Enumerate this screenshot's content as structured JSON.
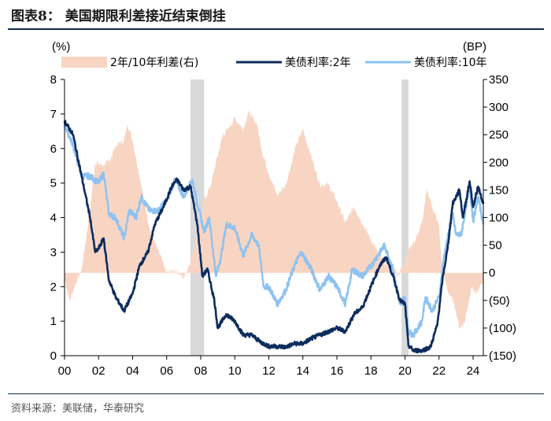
{
  "title": "图表8：  美国期限利差接近结束倒挂",
  "source": "资料来源：美联储，华泰研究",
  "chart_data": {
    "type": "line",
    "title": "美国期限利差接近结束倒挂",
    "left_axis": {
      "unit": "(%)",
      "min": 0,
      "max": 8,
      "ticks": [
        "0",
        "1",
        "2",
        "3",
        "4",
        "5",
        "6",
        "7",
        "8"
      ]
    },
    "right_axis": {
      "unit": "(BP)",
      "min": -150,
      "max": 350,
      "ticks": [
        "(150)",
        "(100)",
        "(50)",
        "0",
        "50",
        "100",
        "150",
        "200",
        "250",
        "300",
        "350"
      ]
    },
    "x_axis": {
      "min": 2000,
      "max": 2024.6,
      "tick_values": [
        2000,
        2002,
        2004,
        2006,
        2008,
        2010,
        2012,
        2014,
        2016,
        2018,
        2020,
        2022,
        2024
      ],
      "tick_labels": [
        "00",
        "02",
        "04",
        "06",
        "08",
        "10",
        "12",
        "14",
        "16",
        "18",
        "20",
        "22",
        "24"
      ]
    },
    "recession_bands": [
      [
        2007.4,
        2008.2
      ],
      [
        2019.8,
        2020.2
      ]
    ],
    "colors": {
      "spread": "#f8d5c2",
      "y2": "#0d2c5e",
      "y10": "#8ec2f0",
      "band": "#d9d9d9",
      "axis": "#000000"
    },
    "legend": [
      "2年/10年利差(右)",
      "美债利率:2年",
      "美债利率:10年"
    ],
    "series": [
      {
        "name": "美债利率:2年",
        "axis": "left",
        "points": [
          [
            2000.0,
            6.8
          ],
          [
            2000.5,
            6.4
          ],
          [
            2001.0,
            5.2
          ],
          [
            2001.5,
            4.0
          ],
          [
            2001.8,
            3.0
          ],
          [
            2002.0,
            3.1
          ],
          [
            2002.3,
            3.4
          ],
          [
            2002.6,
            2.2
          ],
          [
            2003.0,
            1.7
          ],
          [
            2003.5,
            1.3
          ],
          [
            2004.0,
            1.8
          ],
          [
            2004.4,
            2.6
          ],
          [
            2004.9,
            3.0
          ],
          [
            2005.3,
            3.8
          ],
          [
            2005.8,
            4.3
          ],
          [
            2006.3,
            4.9
          ],
          [
            2006.6,
            5.1
          ],
          [
            2007.0,
            4.8
          ],
          [
            2007.4,
            4.9
          ],
          [
            2007.8,
            3.8
          ],
          [
            2008.1,
            2.3
          ],
          [
            2008.4,
            2.5
          ],
          [
            2008.8,
            1.6
          ],
          [
            2009.0,
            0.8
          ],
          [
            2009.5,
            1.2
          ],
          [
            2010.0,
            1.0
          ],
          [
            2010.5,
            0.6
          ],
          [
            2011.0,
            0.6
          ],
          [
            2011.5,
            0.4
          ],
          [
            2012.0,
            0.27
          ],
          [
            2012.5,
            0.27
          ],
          [
            2013.0,
            0.25
          ],
          [
            2013.5,
            0.35
          ],
          [
            2014.0,
            0.35
          ],
          [
            2014.5,
            0.5
          ],
          [
            2015.0,
            0.6
          ],
          [
            2015.5,
            0.7
          ],
          [
            2016.0,
            0.8
          ],
          [
            2016.5,
            0.7
          ],
          [
            2017.0,
            1.2
          ],
          [
            2017.5,
            1.4
          ],
          [
            2018.0,
            2.0
          ],
          [
            2018.5,
            2.6
          ],
          [
            2018.9,
            2.85
          ],
          [
            2019.3,
            2.3
          ],
          [
            2019.7,
            1.6
          ],
          [
            2020.0,
            1.5
          ],
          [
            2020.2,
            0.3
          ],
          [
            2020.5,
            0.15
          ],
          [
            2021.0,
            0.15
          ],
          [
            2021.5,
            0.25
          ],
          [
            2021.9,
            0.9
          ],
          [
            2022.2,
            2.2
          ],
          [
            2022.5,
            3.1
          ],
          [
            2022.8,
            4.4
          ],
          [
            2023.2,
            4.8
          ],
          [
            2023.4,
            4.0
          ],
          [
            2023.8,
            5.05
          ],
          [
            2024.0,
            4.3
          ],
          [
            2024.3,
            4.9
          ],
          [
            2024.6,
            4.4
          ]
        ]
      },
      {
        "name": "美债利率:10年",
        "axis": "left",
        "points": [
          [
            2000.0,
            6.7
          ],
          [
            2000.5,
            6.1
          ],
          [
            2001.0,
            5.2
          ],
          [
            2001.5,
            5.2
          ],
          [
            2002.0,
            5.0
          ],
          [
            2002.3,
            5.3
          ],
          [
            2002.6,
            4.1
          ],
          [
            2003.0,
            4.0
          ],
          [
            2003.5,
            3.4
          ],
          [
            2003.8,
            4.2
          ],
          [
            2004.2,
            4.0
          ],
          [
            2004.5,
            4.6
          ],
          [
            2005.0,
            4.2
          ],
          [
            2005.5,
            4.2
          ],
          [
            2006.0,
            4.5
          ],
          [
            2006.5,
            5.1
          ],
          [
            2007.0,
            4.6
          ],
          [
            2007.5,
            5.1
          ],
          [
            2007.9,
            4.2
          ],
          [
            2008.2,
            3.6
          ],
          [
            2008.5,
            4.0
          ],
          [
            2008.9,
            2.3
          ],
          [
            2009.2,
            2.9
          ],
          [
            2009.5,
            3.8
          ],
          [
            2010.0,
            3.7
          ],
          [
            2010.5,
            2.9
          ],
          [
            2011.0,
            3.5
          ],
          [
            2011.4,
            3.2
          ],
          [
            2011.7,
            2.0
          ],
          [
            2012.0,
            2.0
          ],
          [
            2012.5,
            1.5
          ],
          [
            2013.0,
            1.9
          ],
          [
            2013.5,
            2.6
          ],
          [
            2013.9,
            3.0
          ],
          [
            2014.5,
            2.5
          ],
          [
            2015.0,
            1.9
          ],
          [
            2015.5,
            2.3
          ],
          [
            2016.0,
            2.0
          ],
          [
            2016.5,
            1.5
          ],
          [
            2016.9,
            2.5
          ],
          [
            2017.5,
            2.3
          ],
          [
            2018.0,
            2.6
          ],
          [
            2018.8,
            3.2
          ],
          [
            2019.3,
            2.5
          ],
          [
            2019.7,
            1.5
          ],
          [
            2020.0,
            1.7
          ],
          [
            2020.2,
            0.7
          ],
          [
            2020.5,
            0.6
          ],
          [
            2021.0,
            1.0
          ],
          [
            2021.2,
            1.7
          ],
          [
            2021.6,
            1.3
          ],
          [
            2022.0,
            1.7
          ],
          [
            2022.3,
            2.9
          ],
          [
            2022.8,
            4.1
          ],
          [
            2023.0,
            3.5
          ],
          [
            2023.3,
            3.5
          ],
          [
            2023.8,
            4.9
          ],
          [
            2024.0,
            3.9
          ],
          [
            2024.3,
            4.6
          ],
          [
            2024.6,
            3.8
          ]
        ]
      },
      {
        "name": "2年/10年利差(右)",
        "axis": "right",
        "points": [
          [
            2000.0,
            -10
          ],
          [
            2000.3,
            -50
          ],
          [
            2000.7,
            -15
          ],
          [
            2001.0,
            5
          ],
          [
            2001.5,
            115
          ],
          [
            2001.8,
            200
          ],
          [
            2002.2,
            195
          ],
          [
            2002.6,
            200
          ],
          [
            2003.0,
            230
          ],
          [
            2003.5,
            240
          ],
          [
            2003.7,
            270
          ],
          [
            2004.0,
            240
          ],
          [
            2004.5,
            160
          ],
          [
            2005.0,
            80
          ],
          [
            2005.5,
            40
          ],
          [
            2006.0,
            0
          ],
          [
            2006.5,
            5
          ],
          [
            2007.0,
            -10
          ],
          [
            2007.5,
            30
          ],
          [
            2007.9,
            80
          ],
          [
            2008.2,
            130
          ],
          [
            2008.6,
            160
          ],
          [
            2008.9,
            200
          ],
          [
            2009.3,
            250
          ],
          [
            2009.6,
            260
          ],
          [
            2010.0,
            280
          ],
          [
            2010.5,
            260
          ],
          [
            2010.8,
            290
          ],
          [
            2011.3,
            270
          ],
          [
            2011.6,
            220
          ],
          [
            2012.0,
            180
          ],
          [
            2012.5,
            140
          ],
          [
            2013.0,
            160
          ],
          [
            2013.6,
            230
          ],
          [
            2014.0,
            260
          ],
          [
            2014.5,
            210
          ],
          [
            2015.0,
            160
          ],
          [
            2015.5,
            160
          ],
          [
            2016.0,
            130
          ],
          [
            2016.5,
            90
          ],
          [
            2017.0,
            120
          ],
          [
            2017.5,
            90
          ],
          [
            2018.0,
            60
          ],
          [
            2018.5,
            30
          ],
          [
            2018.9,
            15
          ],
          [
            2019.3,
            15
          ],
          [
            2019.6,
            -5
          ],
          [
            2019.9,
            15
          ],
          [
            2020.2,
            40
          ],
          [
            2020.6,
            60
          ],
          [
            2021.0,
            90
          ],
          [
            2021.3,
            150
          ],
          [
            2021.6,
            120
          ],
          [
            2022.0,
            85
          ],
          [
            2022.2,
            0
          ],
          [
            2022.6,
            -40
          ],
          [
            2022.9,
            -55
          ],
          [
            2023.2,
            -100
          ],
          [
            2023.5,
            -90
          ],
          [
            2023.9,
            -25
          ],
          [
            2024.2,
            -40
          ],
          [
            2024.4,
            -25
          ],
          [
            2024.6,
            -20
          ]
        ]
      }
    ]
  }
}
